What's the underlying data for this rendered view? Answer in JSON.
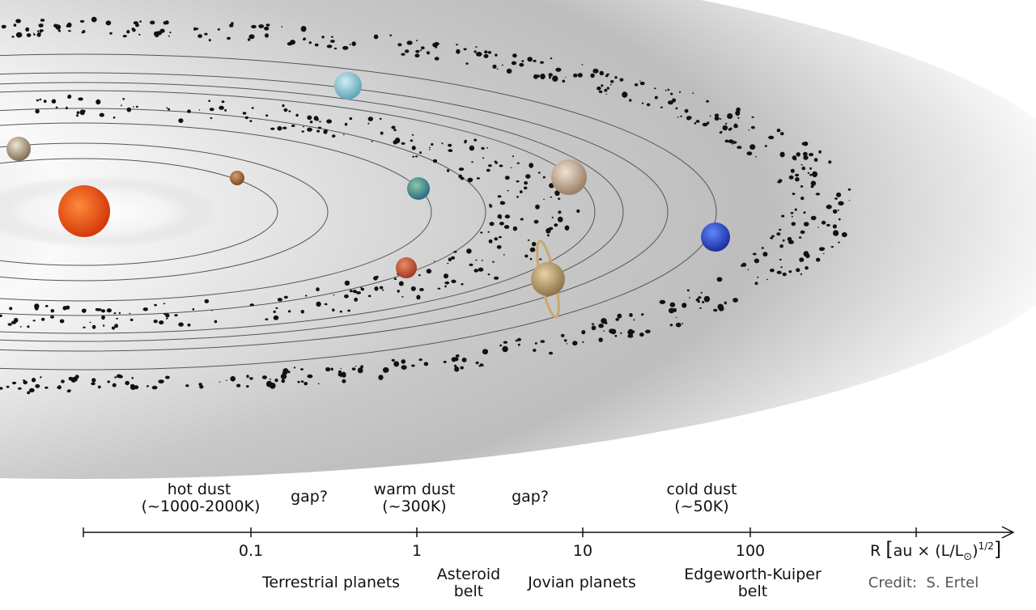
{
  "zones": [
    {
      "lines": [
        "hot dust",
        "(~1000-2000K)"
      ]
    },
    {
      "lines": [
        "gap?"
      ]
    },
    {
      "lines": [
        "warm dust",
        "(~300K)"
      ]
    },
    {
      "lines": [
        "gap?"
      ]
    },
    {
      "lines": [
        "cold dust",
        "(~50K)"
      ]
    }
  ],
  "axis": {
    "ticks": [
      "0.1",
      "1",
      "10",
      "100"
    ],
    "label": {
      "symbol": "R",
      "open": "[",
      "unit": "au × (L/L",
      "sun": "⊙",
      "close_paren": ")",
      "power": "1/2",
      "close": "]"
    }
  },
  "regions": [
    {
      "lines": [
        "Terrestrial planets"
      ]
    },
    {
      "lines": [
        "Asteroid",
        "belt"
      ]
    },
    {
      "lines": [
        "Jovian planets"
      ]
    },
    {
      "lines": [
        "Edgeworth-Kuiper",
        "belt"
      ]
    }
  ],
  "credit": "Credit:  S. Ertel"
}
